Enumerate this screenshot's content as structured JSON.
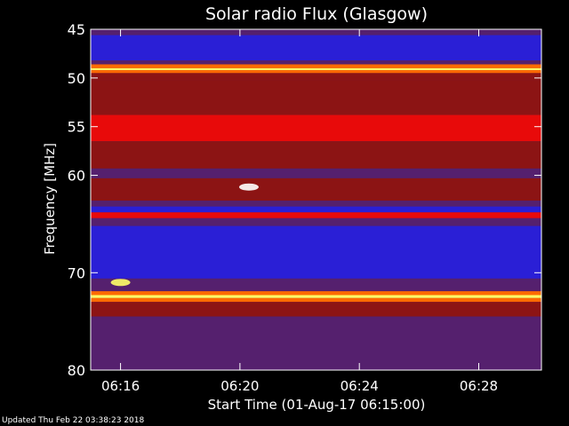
{
  "chart_data": {
    "type": "heatmap",
    "title": "Solar radio Flux (Glasgow)",
    "xlabel": "Start Time (01-Aug-17 06:15:00)",
    "ylabel": "Frequency [MHz]",
    "x_range_minutes": [
      0,
      15.1
    ],
    "ylim": [
      45,
      80
    ],
    "x_ticks": [
      {
        "label": "06:16",
        "minutes": 1
      },
      {
        "label": "06:20",
        "minutes": 5
      },
      {
        "label": "06:24",
        "minutes": 9
      },
      {
        "label": "06:28",
        "minutes": 13
      }
    ],
    "y_ticks": [
      45,
      50,
      55,
      60,
      70,
      80
    ],
    "colors": {
      "blue": "#2a1fd6",
      "purple": "#55206e",
      "red": "#e80a0a",
      "dark_red": "#8c1414",
      "orange": "#ff6a00",
      "yellow": "#ffff66",
      "white": "#ffffff"
    },
    "frequency_bands": [
      {
        "from": 45.0,
        "to": 45.6,
        "level": "purple"
      },
      {
        "from": 45.6,
        "to": 48.2,
        "level": "blue"
      },
      {
        "from": 48.2,
        "to": 48.6,
        "level": "purple"
      },
      {
        "from": 48.6,
        "to": 49.0,
        "level": "orange"
      },
      {
        "from": 49.0,
        "to": 49.2,
        "level": "yellow"
      },
      {
        "from": 49.2,
        "to": 49.5,
        "level": "orange"
      },
      {
        "from": 49.5,
        "to": 50.2,
        "level": "dark_red"
      },
      {
        "from": 50.2,
        "to": 53.8,
        "level": "dark_red"
      },
      {
        "from": 53.8,
        "to": 56.5,
        "level": "red"
      },
      {
        "from": 56.5,
        "to": 59.3,
        "level": "dark_red"
      },
      {
        "from": 59.3,
        "to": 60.3,
        "level": "purple"
      },
      {
        "from": 60.3,
        "to": 62.6,
        "level": "dark_red"
      },
      {
        "from": 62.6,
        "to": 63.2,
        "level": "purple"
      },
      {
        "from": 63.2,
        "to": 63.8,
        "level": "blue"
      },
      {
        "from": 63.8,
        "to": 64.4,
        "level": "red"
      },
      {
        "from": 64.4,
        "to": 65.2,
        "level": "purple"
      },
      {
        "from": 65.2,
        "to": 70.6,
        "level": "blue"
      },
      {
        "from": 70.6,
        "to": 71.9,
        "level": "purple"
      },
      {
        "from": 71.9,
        "to": 72.3,
        "level": "orange"
      },
      {
        "from": 72.3,
        "to": 72.6,
        "level": "yellow"
      },
      {
        "from": 72.6,
        "to": 73.0,
        "level": "orange"
      },
      {
        "from": 73.0,
        "to": 74.5,
        "level": "dark_red"
      },
      {
        "from": 74.5,
        "to": 80.0,
        "level": "purple"
      }
    ],
    "bursts": [
      {
        "time_minutes": 5.3,
        "freq": 61.2,
        "level": "white"
      },
      {
        "time_minutes": 1.0,
        "freq": 71.0,
        "level": "yellow"
      }
    ]
  },
  "footer": {
    "updated": "Updated Thu Feb 22 03:38:23 2018"
  }
}
